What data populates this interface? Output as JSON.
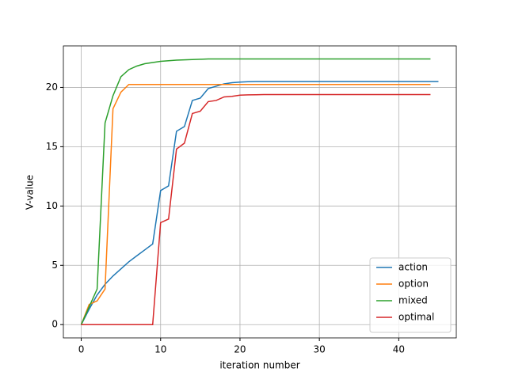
{
  "chart_data": {
    "type": "line",
    "xlabel": "iteration number",
    "ylabel": "V-value",
    "x": [
      0,
      1,
      2,
      3,
      4,
      5,
      6,
      7,
      8,
      9,
      10,
      11,
      12,
      13,
      14,
      15,
      16,
      17,
      18,
      19,
      20,
      21,
      22,
      23,
      24,
      25,
      26,
      27,
      28,
      29,
      30,
      31,
      32,
      33,
      34,
      35,
      36,
      37,
      38,
      39,
      40,
      41,
      42,
      43,
      44,
      45
    ],
    "series": [
      {
        "name": "action",
        "color": "#1f77b4",
        "values": [
          0,
          1.3,
          2.5,
          3.4,
          4.1,
          4.7,
          5.3,
          5.8,
          6.3,
          6.8,
          11.3,
          11.7,
          16.3,
          16.7,
          18.9,
          19.1,
          19.9,
          20.1,
          20.3,
          20.4,
          20.45,
          20.48,
          20.5,
          20.5,
          20.5,
          20.5,
          20.5,
          20.5,
          20.5,
          20.5,
          20.5,
          20.5,
          20.5,
          20.5,
          20.5,
          20.5,
          20.5,
          20.5,
          20.5,
          20.5,
          20.5,
          20.5,
          20.5,
          20.5,
          20.5,
          20.5
        ]
      },
      {
        "name": "option",
        "color": "#ff7f0e",
        "values": [
          0,
          1.7,
          2.0,
          3.0,
          18.2,
          19.6,
          20.25,
          20.25,
          20.25,
          20.25,
          20.25,
          20.25,
          20.25,
          20.25,
          20.25,
          20.25,
          20.25,
          20.25,
          20.25,
          20.25,
          20.25,
          20.25,
          20.25,
          20.25,
          20.25,
          20.25,
          20.25,
          20.25,
          20.25,
          20.25,
          20.25,
          20.25,
          20.25,
          20.25,
          20.25,
          20.25,
          20.25,
          20.25,
          20.25,
          20.25,
          20.25,
          20.25,
          20.25,
          20.25,
          20.25,
          null
        ]
      },
      {
        "name": "mixed",
        "color": "#2ca02c",
        "values": [
          0,
          1.5,
          3.0,
          17.0,
          19.3,
          20.9,
          21.5,
          21.8,
          22.0,
          22.1,
          22.2,
          22.25,
          22.3,
          22.32,
          22.35,
          22.37,
          22.4,
          22.4,
          22.4,
          22.4,
          22.4,
          22.4,
          22.4,
          22.4,
          22.4,
          22.4,
          22.4,
          22.4,
          22.4,
          22.4,
          22.4,
          22.4,
          22.4,
          22.4,
          22.4,
          22.4,
          22.4,
          22.4,
          22.4,
          22.4,
          22.4,
          22.4,
          22.4,
          22.4,
          22.4,
          null
        ]
      },
      {
        "name": "optimal",
        "color": "#d62728",
        "values": [
          0,
          0,
          0,
          0,
          0,
          0,
          0,
          0,
          0,
          0,
          8.6,
          8.9,
          14.8,
          15.3,
          17.8,
          18.0,
          18.8,
          18.9,
          19.2,
          19.25,
          19.35,
          19.37,
          19.38,
          19.4,
          19.4,
          19.4,
          19.4,
          19.4,
          19.4,
          19.4,
          19.4,
          19.4,
          19.4,
          19.4,
          19.4,
          19.4,
          19.4,
          19.4,
          19.4,
          19.4,
          19.4,
          19.4,
          19.4,
          19.4,
          19.4,
          null
        ]
      }
    ],
    "xlim": [
      -2.25,
      47.25
    ],
    "ylim": [
      -1.12,
      23.5
    ],
    "xticks": [
      0,
      10,
      20,
      30,
      40
    ],
    "yticks": [
      0,
      5,
      10,
      15,
      20
    ],
    "grid": true,
    "legend": "lower right"
  }
}
